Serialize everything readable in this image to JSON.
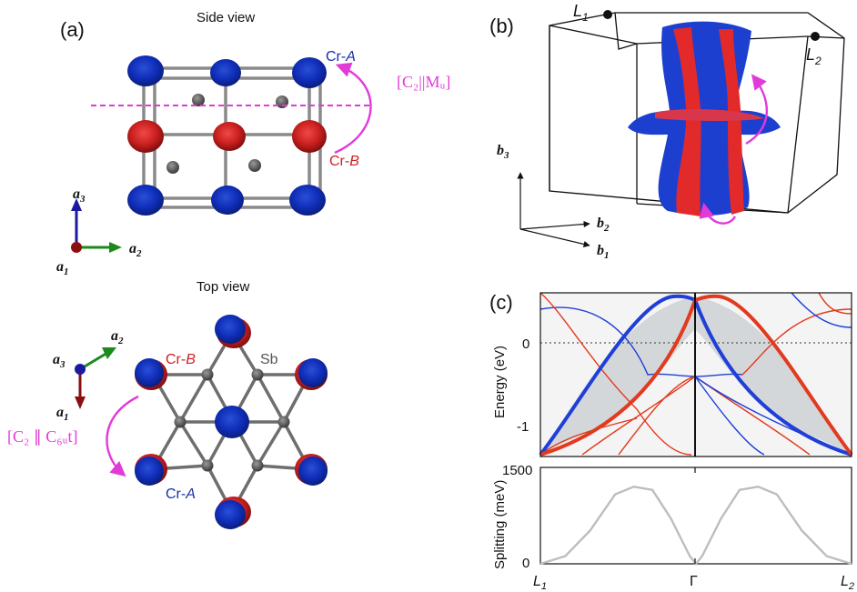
{
  "panel_a": {
    "label": "(a)",
    "side_view_title": "Side view",
    "top_view_title": "Top view",
    "cr_a_prefix": "Cr-",
    "cr_a_suffix": "A",
    "cr_b_prefix": "Cr-",
    "cr_b_suffix": "B",
    "sb_label": "Sb",
    "sym_side": "[C₂||Mᵤ]",
    "sym_top": "[C₂ ∥ C₆ᵤt]",
    "axes_side": {
      "a3": "a",
      "a3_sub": "3",
      "a2": "a",
      "a2_sub": "2",
      "a1": "a",
      "a1_sub": "1"
    },
    "axes_top": {
      "a3": "a",
      "a3_sub": "3",
      "a2": "a",
      "a2_sub": "2",
      "a1": "a",
      "a1_sub": "1"
    }
  },
  "panel_b": {
    "label": "(b)",
    "L1": "L",
    "L1_sub": "1",
    "L2": "L",
    "L2_sub": "2",
    "b3": "b",
    "b3_sub": "3",
    "b2": "b",
    "b2_sub": "2",
    "b1": "b",
    "b1_sub": "1"
  },
  "panel_c": {
    "label": "(c)",
    "colors": {
      "spin_up": "#1f3fd8",
      "spin_down": "#e23a1f",
      "shade": "#d4d7da",
      "splitting": "#bdbdbd"
    },
    "chart_data": [
      {
        "type": "line",
        "ylabel": "Energy (eV)",
        "ylim": [
          -1.4,
          0.55
        ],
        "yticks": [
          "0",
          "-1"
        ],
        "x_tick_labels": [
          "L1",
          "Γ",
          "L2"
        ],
        "fermi_level": 0,
        "series": [
          {
            "color": "blue",
            "x": [
              0,
              0.15,
              0.3,
              0.45,
              0.5,
              0.6,
              0.75,
              0.9,
              1.0
            ],
            "y": [
              -1.3,
              -0.9,
              0.0,
              0.5,
              0.5,
              -0.55,
              -1.0,
              -1.2,
              -1.35
            ]
          },
          {
            "color": "red",
            "x": [
              0,
              0.1,
              0.25,
              0.4,
              0.5,
              0.55,
              0.7,
              0.85,
              1.0
            ],
            "y": [
              -1.35,
              -1.2,
              -1.0,
              -0.55,
              0.5,
              0.5,
              0.0,
              -0.9,
              -1.3
            ]
          }
        ]
      },
      {
        "type": "line",
        "ylabel": "Splitting (meV)",
        "ylim": [
          0,
          1500
        ],
        "yticks": [
          "0",
          "1500"
        ],
        "x_tick_labels": [
          "L1",
          "Γ",
          "L2"
        ],
        "series": [
          {
            "color": "gray",
            "x": [
              0,
              0.08,
              0.16,
              0.24,
              0.3,
              0.36,
              0.42,
              0.48,
              0.5,
              0.52,
              0.58,
              0.64,
              0.7,
              0.76,
              0.84,
              0.92,
              1.0
            ],
            "y": [
              0,
              120,
              520,
              1080,
              1200,
              1150,
              700,
              120,
              0,
              120,
              700,
              1150,
              1200,
              1080,
              520,
              120,
              0
            ]
          }
        ]
      }
    ]
  }
}
